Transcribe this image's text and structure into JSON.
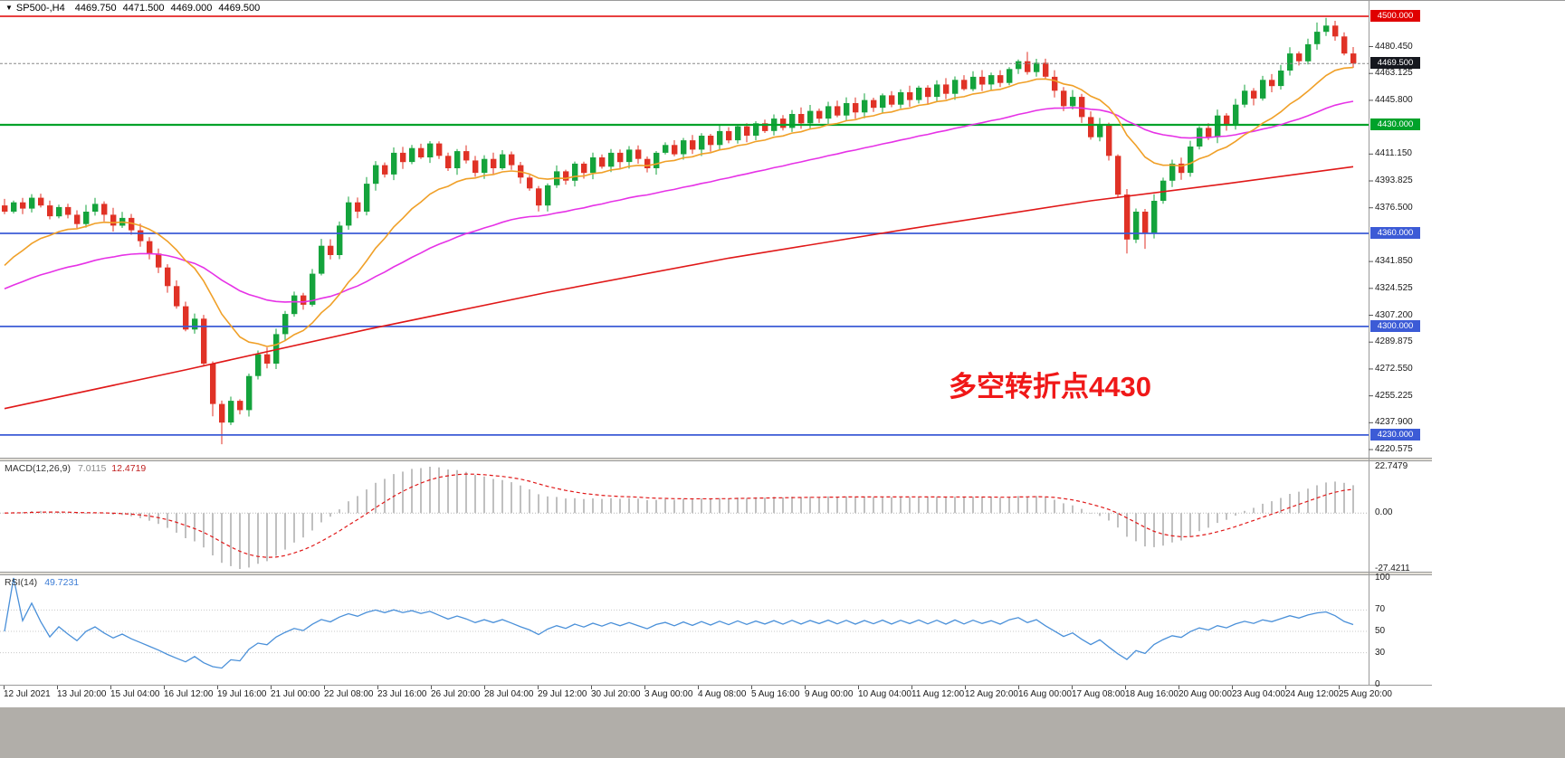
{
  "header": {
    "marker_icon": "▼",
    "symbol": "SP500-,H4",
    "open": "4469.750",
    "high": "4471.500",
    "low": "4469.000",
    "close": "4469.500"
  },
  "annotation": {
    "text": "多空转折点4430",
    "color": "#f01818"
  },
  "indicators": {
    "macd": {
      "label": "MACD(12,26,9)",
      "value_main": "7.0115",
      "value_signal": "12.4719",
      "scale": [
        "22.7479",
        "0.00",
        "-27.4211"
      ]
    },
    "rsi": {
      "label": "RSI(14)",
      "value": "49.7231",
      "scale": [
        "100",
        "70",
        "50",
        "30",
        "0"
      ]
    }
  },
  "chart_data": {
    "type": "candlestick",
    "symbol": "SP500-",
    "timeframe": "H4",
    "ylim": [
      4218.5,
      4502
    ],
    "current_price": 4469.5,
    "current_price_label": "4469.500",
    "first_open": 4378,
    "closes": [
      4374,
      4380,
      4376,
      4383,
      4378,
      4371,
      4377,
      4372,
      4366,
      4374,
      4379,
      4372,
      4365,
      4370,
      4362,
      4355,
      4347,
      4338,
      4326,
      4313,
      4298,
      4305,
      4276,
      4250,
      4238,
      4252,
      4246,
      4268,
      4282,
      4276,
      4295,
      4308,
      4320,
      4314,
      4334,
      4352,
      4346,
      4365,
      4380,
      4374,
      4392,
      4404,
      4398,
      4412,
      4406,
      4415,
      4409,
      4418,
      4410,
      4402,
      4413,
      4407,
      4399,
      4408,
      4402,
      4411,
      4404,
      4396,
      4389,
      4378,
      4391,
      4400,
      4394,
      4405,
      4399,
      4409,
      4403,
      4412,
      4406,
      4414,
      4408,
      4402,
      4412,
      4417,
      4411,
      4420,
      4414,
      4423,
      4417,
      4426,
      4420,
      4429,
      4423,
      4431,
      4426,
      4434,
      4428,
      4437,
      4431,
      4439,
      4434,
      4442,
      4436,
      4444,
      4438,
      4446,
      4441,
      4449,
      4443,
      4451,
      4446,
      4454,
      4448,
      4456,
      4450,
      4459,
      4453,
      4461,
      4456,
      4462,
      4457,
      4466,
      4471,
      4464,
      4470,
      4461,
      4452,
      4442,
      4448,
      4435,
      4422,
      4430,
      4410,
      4385,
      4356,
      4374,
      4360,
      4381,
      4394,
      4405,
      4399,
      4416,
      4428,
      4422,
      4436,
      4430,
      4443,
      4452,
      4447,
      4459,
      4455,
      4465,
      4476,
      4471,
      4482,
      4490,
      4494,
      4487,
      4476,
      4469.5
    ],
    "wick_overrides": {
      "23": {
        "low": 4242
      },
      "24": {
        "low": 4224
      },
      "113": {
        "high": 4477
      },
      "124": {
        "low": 4347
      },
      "126": {
        "low": 4350
      },
      "145": {
        "high": 4496
      },
      "146": {
        "high": 4499
      }
    },
    "ma_red_points": [
      [
        0,
        4247
      ],
      [
        20,
        4272
      ],
      [
        40,
        4298
      ],
      [
        60,
        4322
      ],
      [
        80,
        4344
      ],
      [
        100,
        4363
      ],
      [
        120,
        4381
      ],
      [
        135,
        4392
      ],
      [
        149,
        4403
      ]
    ],
    "hlines": [
      {
        "price": 4500,
        "label": "4500.000",
        "color": "#e00000",
        "width": 1.4
      },
      {
        "price": 4430,
        "label": "4430.000",
        "color": "#00a22a",
        "width": 2.2
      },
      {
        "price": 4360,
        "label": "4360.000",
        "color": "#3c5bd6",
        "width": 1.8
      },
      {
        "price": 4300,
        "label": "4300.000",
        "color": "#3c5bd6",
        "width": 1.8
      },
      {
        "price": 4230,
        "label": "4230.000",
        "color": "#3c5bd6",
        "width": 1.8
      }
    ],
    "grid_labels": [
      {
        "price": 4480.45,
        "text": "4480.450"
      },
      {
        "price": 4463.125,
        "text": "4463.125"
      },
      {
        "price": 4445.8,
        "text": "4445.800"
      },
      {
        "price": 4411.15,
        "text": "4411.150"
      },
      {
        "price": 4393.825,
        "text": "4393.825"
      },
      {
        "price": 4376.5,
        "text": "4376.500"
      },
      {
        "price": 4341.85,
        "text": "4341.850"
      },
      {
        "price": 4324.525,
        "text": "4324.525"
      },
      {
        "price": 4307.2,
        "text": "4307.200"
      },
      {
        "price": 4289.875,
        "text": "4289.875"
      },
      {
        "price": 4272.55,
        "text": "4272.550"
      },
      {
        "price": 4255.225,
        "text": "4255.225"
      },
      {
        "price": 4237.9,
        "text": "4237.900"
      },
      {
        "price": 4220.575,
        "text": "4220.575"
      }
    ],
    "time_labels": [
      "12 Jul 2021",
      "13 Jul 20:00",
      "15 Jul 04:00",
      "16 Jul 12:00",
      "19 Jul 16:00",
      "21 Jul 00:00",
      "22 Jul 08:00",
      "23 Jul 16:00",
      "26 Jul 20:00",
      "28 Jul 04:00",
      "29 Jul 12:00",
      "30 Jul 20:00",
      "3 Aug 00:00",
      "4 Aug 08:00",
      "5 Aug 16:00",
      "9 Aug 00:00",
      "10 Aug 04:00",
      "11 Aug 12:00",
      "12 Aug 20:00",
      "16 Aug 00:00",
      "17 Aug 08:00",
      "18 Aug 16:00",
      "20 Aug 00:00",
      "23 Aug 04:00",
      "24 Aug 12:00",
      "25 Aug 20:00"
    ],
    "colors": {
      "up": "#14a33c",
      "down": "#e03226",
      "ma_fast": "#f0a028",
      "ma_mid": "#e632e6",
      "ma_slow": "#e01818",
      "macd_hist": "#c0c0c0",
      "macd_signal": "#e01818",
      "rsi": "#4a90d9",
      "badge_current": "#15171e"
    }
  }
}
